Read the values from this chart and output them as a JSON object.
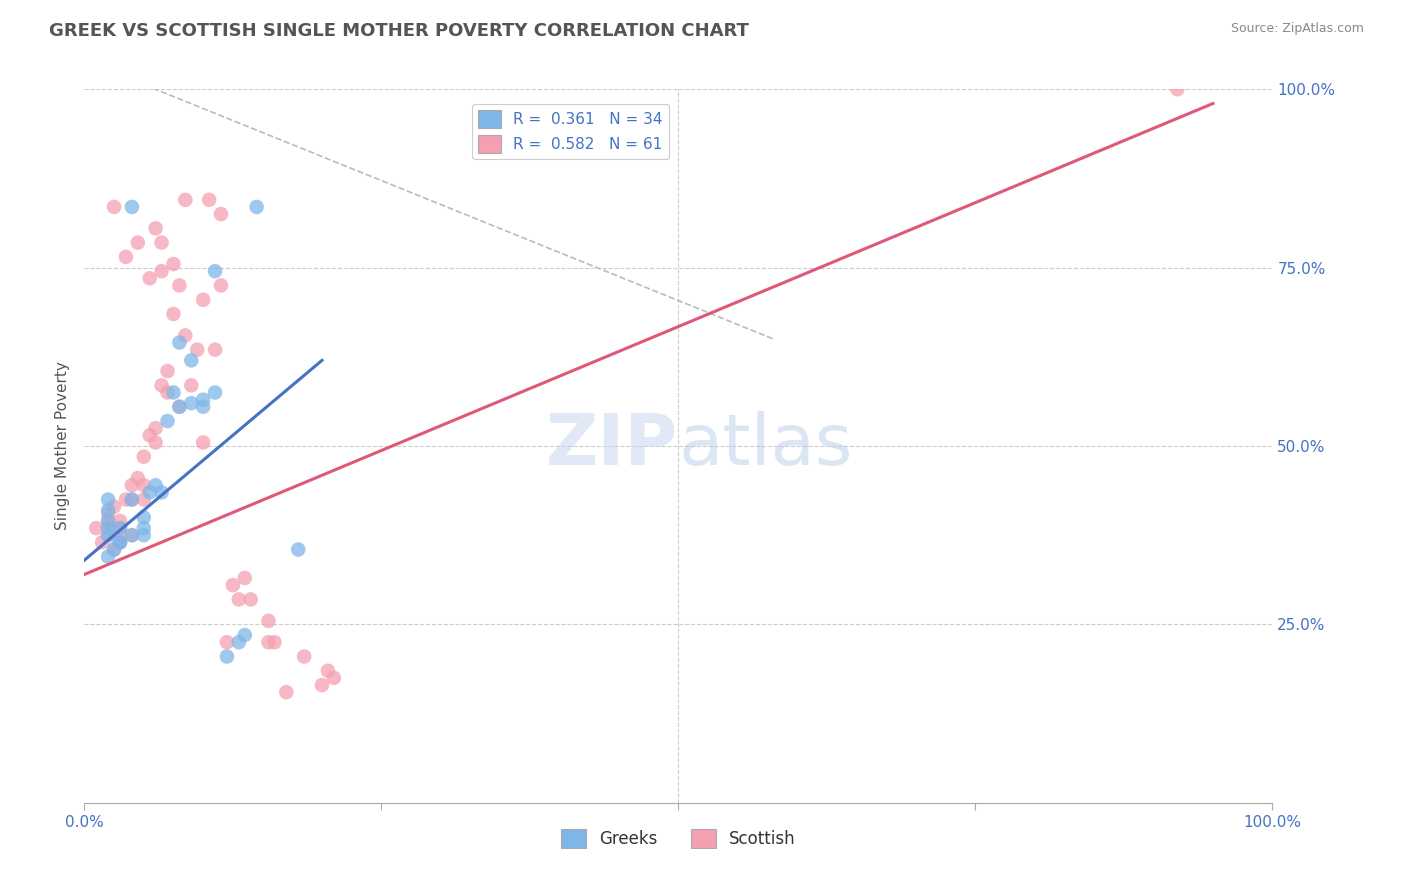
{
  "title": "GREEK VS SCOTTISH SINGLE MOTHER POVERTY CORRELATION CHART",
  "source": "Source: ZipAtlas.com",
  "ylabel": "Single Mother Poverty",
  "xlim": [
    0,
    1
  ],
  "ylim": [
    0,
    1
  ],
  "greek_color": "#7EB6E8",
  "scottish_color": "#F4A0B0",
  "greek_R": 0.361,
  "greek_N": 34,
  "scottish_R": 0.582,
  "scottish_N": 61,
  "watermark_zip": "ZIP",
  "watermark_atlas": "atlas",
  "background_color": "#ffffff",
  "grid_color": "#cccccc",
  "tick_color": "#4472c4",
  "greek_line": {
    "x0": 0.0,
    "y0": 0.34,
    "x1": 0.2,
    "y1": 0.62
  },
  "scottish_line": {
    "x0": 0.0,
    "y0": 0.32,
    "x1": 0.95,
    "y1": 0.98
  },
  "diagonal_line": {
    "x0": 0.03,
    "y0": 1.02,
    "x1": 0.58,
    "y1": 0.65
  },
  "greek_points": [
    [
      0.02,
      0.345
    ],
    [
      0.02,
      0.375
    ],
    [
      0.02,
      0.385
    ],
    [
      0.02,
      0.395
    ],
    [
      0.02,
      0.41
    ],
    [
      0.02,
      0.425
    ],
    [
      0.025,
      0.355
    ],
    [
      0.03,
      0.365
    ],
    [
      0.03,
      0.385
    ],
    [
      0.03,
      0.365
    ],
    [
      0.04,
      0.375
    ],
    [
      0.04,
      0.425
    ],
    [
      0.05,
      0.375
    ],
    [
      0.05,
      0.385
    ],
    [
      0.05,
      0.4
    ],
    [
      0.055,
      0.435
    ],
    [
      0.06,
      0.445
    ],
    [
      0.065,
      0.435
    ],
    [
      0.07,
      0.535
    ],
    [
      0.075,
      0.575
    ],
    [
      0.08,
      0.645
    ],
    [
      0.08,
      0.555
    ],
    [
      0.09,
      0.62
    ],
    [
      0.09,
      0.56
    ],
    [
      0.1,
      0.555
    ],
    [
      0.1,
      0.565
    ],
    [
      0.11,
      0.575
    ],
    [
      0.11,
      0.745
    ],
    [
      0.12,
      0.205
    ],
    [
      0.13,
      0.225
    ],
    [
      0.135,
      0.235
    ],
    [
      0.145,
      0.835
    ],
    [
      0.18,
      0.355
    ],
    [
      0.04,
      0.835
    ]
  ],
  "scottish_points": [
    [
      0.01,
      0.385
    ],
    [
      0.015,
      0.365
    ],
    [
      0.02,
      0.375
    ],
    [
      0.02,
      0.385
    ],
    [
      0.02,
      0.395
    ],
    [
      0.02,
      0.405
    ],
    [
      0.025,
      0.415
    ],
    [
      0.025,
      0.355
    ],
    [
      0.03,
      0.365
    ],
    [
      0.03,
      0.375
    ],
    [
      0.03,
      0.385
    ],
    [
      0.03,
      0.395
    ],
    [
      0.035,
      0.425
    ],
    [
      0.04,
      0.375
    ],
    [
      0.04,
      0.425
    ],
    [
      0.04,
      0.445
    ],
    [
      0.045,
      0.455
    ],
    [
      0.05,
      0.425
    ],
    [
      0.05,
      0.445
    ],
    [
      0.05,
      0.485
    ],
    [
      0.055,
      0.515
    ],
    [
      0.06,
      0.505
    ],
    [
      0.06,
      0.525
    ],
    [
      0.065,
      0.585
    ],
    [
      0.07,
      0.575
    ],
    [
      0.07,
      0.605
    ],
    [
      0.075,
      0.685
    ],
    [
      0.08,
      0.725
    ],
    [
      0.08,
      0.555
    ],
    [
      0.085,
      0.655
    ],
    [
      0.09,
      0.585
    ],
    [
      0.095,
      0.635
    ],
    [
      0.1,
      0.505
    ],
    [
      0.1,
      0.705
    ],
    [
      0.11,
      0.635
    ],
    [
      0.115,
      0.725
    ],
    [
      0.12,
      0.225
    ],
    [
      0.13,
      0.285
    ],
    [
      0.14,
      0.285
    ],
    [
      0.155,
      0.225
    ],
    [
      0.16,
      0.225
    ],
    [
      0.17,
      0.155
    ],
    [
      0.2,
      0.165
    ],
    [
      0.205,
      0.185
    ],
    [
      0.21,
      0.175
    ],
    [
      0.06,
      0.805
    ],
    [
      0.065,
      0.785
    ],
    [
      0.075,
      0.755
    ],
    [
      0.055,
      0.735
    ],
    [
      0.065,
      0.745
    ],
    [
      0.045,
      0.785
    ],
    [
      0.035,
      0.765
    ],
    [
      0.025,
      0.835
    ],
    [
      0.085,
      0.845
    ],
    [
      0.105,
      0.845
    ],
    [
      0.115,
      0.825
    ],
    [
      0.125,
      0.305
    ],
    [
      0.135,
      0.315
    ],
    [
      0.155,
      0.255
    ],
    [
      0.185,
      0.205
    ],
    [
      0.92,
      1.0
    ]
  ]
}
